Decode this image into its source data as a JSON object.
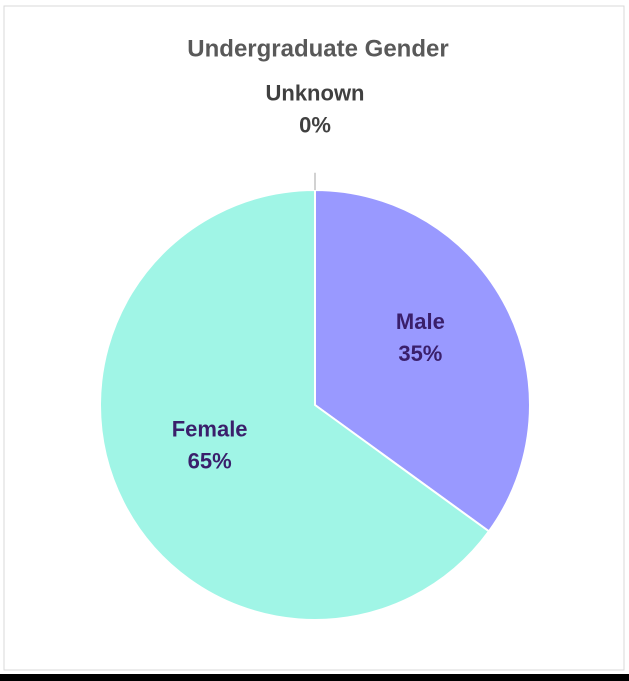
{
  "chart_data": {
    "type": "pie",
    "title": "Undergraduate Gender",
    "categories": [
      "Unknown",
      "Male",
      "Female"
    ],
    "values": [
      0,
      35,
      65
    ],
    "value_labels": [
      "0%",
      "35%",
      "65%"
    ],
    "colors": [
      "#f0b400",
      "#9999ff",
      "#a0f5e6"
    ]
  }
}
